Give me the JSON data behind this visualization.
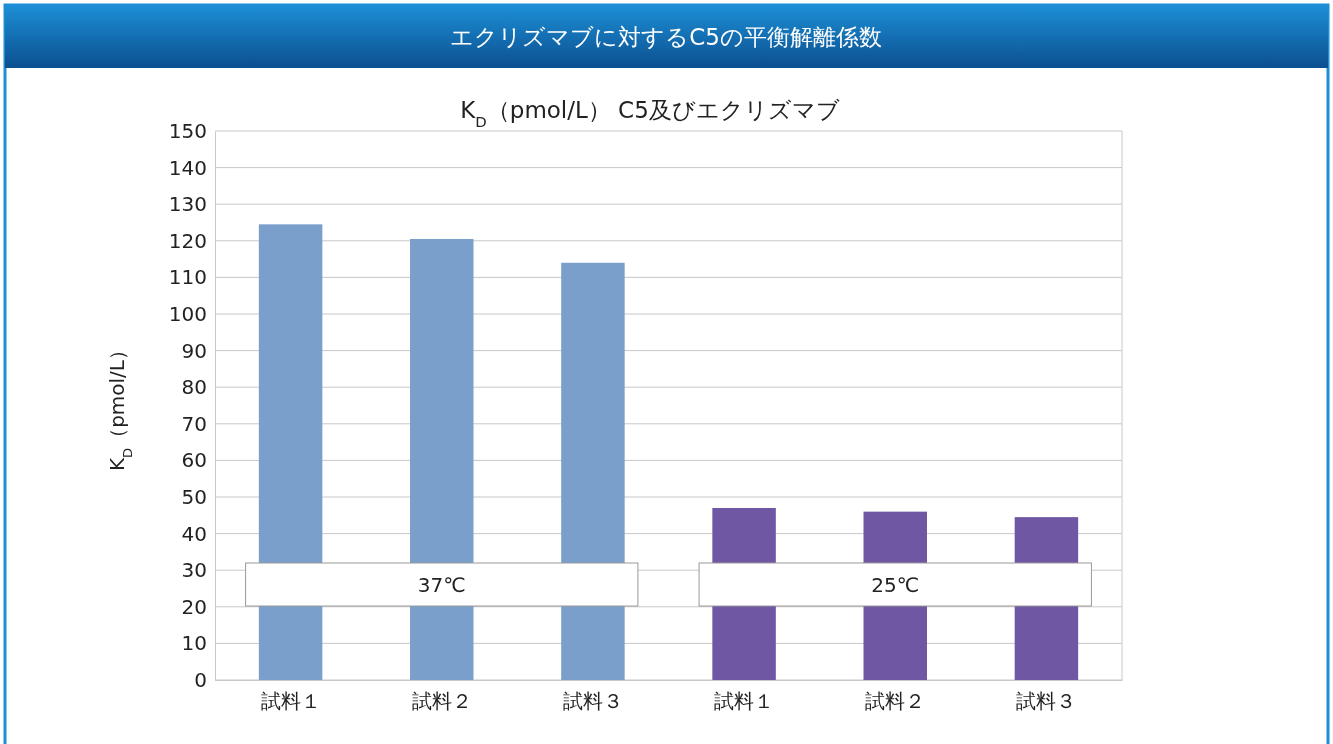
{
  "chart_data": {
    "type": "bar",
    "title": "エクリズマブに対するC5の平衡解離係数",
    "subtitle": "K$_{D}$（pmol/L） C5及びエクリズマブ",
    "ylabel": "K$_{D}$（pmol/L）",
    "categories": [
      "試料１",
      "試料２",
      "試料３",
      "試料１",
      "試料２",
      "試料３"
    ],
    "values": [
      124.5,
      120.5,
      114,
      47,
      46,
      44.5
    ],
    "colors": [
      "#7a9fcb",
      "#7a9fcb",
      "#7a9fcb",
      "#7057a3",
      "#7057a3",
      "#7057a3"
    ],
    "ylim": [
      0,
      150
    ],
    "yticks": [
      0,
      10,
      20,
      30,
      40,
      50,
      60,
      70,
      80,
      90,
      100,
      110,
      120,
      130,
      140,
      150
    ],
    "grid": "y",
    "annotations": [
      "37℃",
      "25℃"
    ]
  }
}
